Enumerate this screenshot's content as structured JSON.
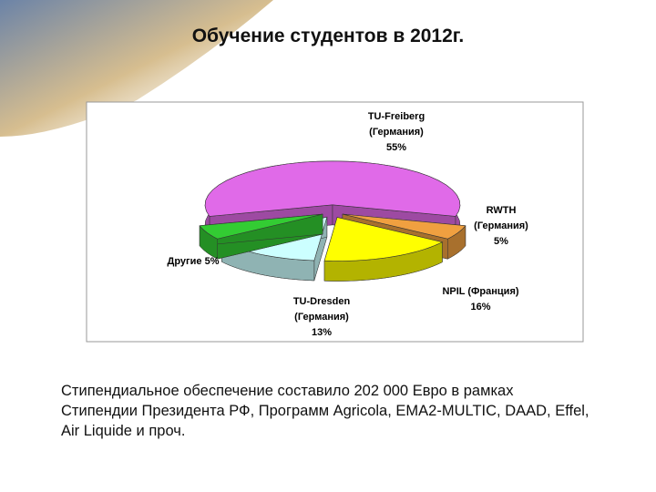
{
  "slide_title": "Обучение студентов в 2012г.",
  "body_text": "Стипендиальное обеспечение составило 202 000 Евро в рамках Стипендии Президента РФ, Программ Agricola, EMA2-MULTIC, DAAD, Effel, Air Liquide и проч.",
  "chart_data": {
    "type": "pie",
    "categories": [
      "TU-Freiberg\n(Германия)",
      "RWTH\n(Германия)",
      "NPIL (Франция)",
      "TU-Dresden\n(Германия)",
      "Другие"
    ],
    "values": [
      55,
      5,
      16,
      13,
      5
    ],
    "value_labels": [
      "55%",
      "5%",
      "16%",
      "13%",
      "5%"
    ],
    "colors": [
      "#e06ae8",
      "#f0a040",
      "#ffff00",
      "#ccffff",
      "#33cc33"
    ]
  }
}
